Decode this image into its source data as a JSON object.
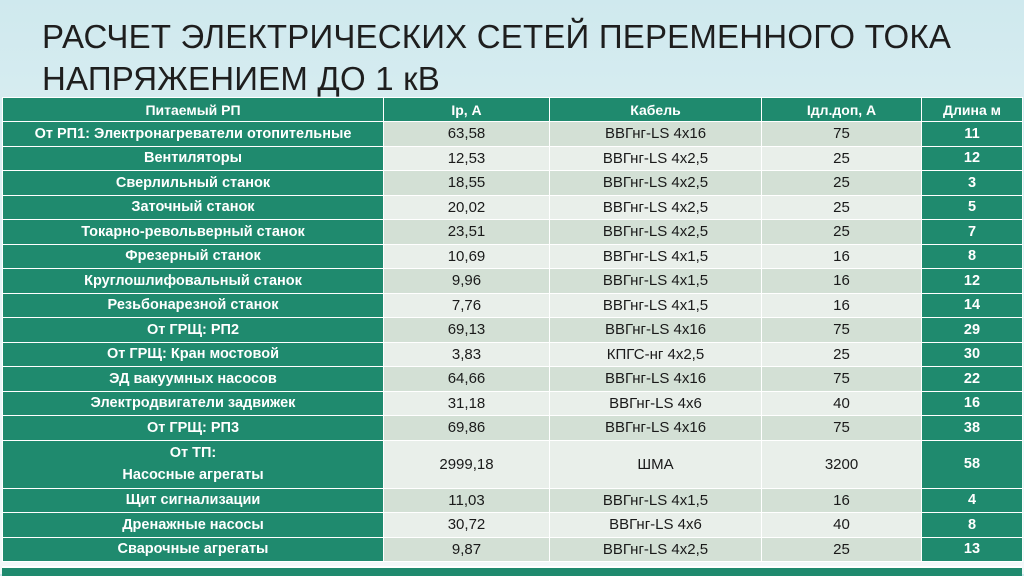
{
  "title": {
    "line1": "РАСЧЕТ ЭЛЕКТРИЧЕСКИХ СЕТЕЙ ПЕРЕМЕННОГО ТОКА",
    "line2": "НАПРЯЖЕНИЕМ ДО 1 кВ"
  },
  "table": {
    "headers": [
      "Питаемый РП",
      "Iр, А",
      "Кабель",
      "Iдл.доп, А",
      "Длина м"
    ],
    "rows": [
      {
        "name": [
          "От РП1: Электронагреватели отопительные"
        ],
        "ip": "63,58",
        "cable": "ВВГнг-LS 4х16",
        "idl": "75",
        "len": "11"
      },
      {
        "name": [
          "Вентиляторы"
        ],
        "ip": "12,53",
        "cable": "ВВГнг-LS 4х2,5",
        "idl": "25",
        "len": "12"
      },
      {
        "name": [
          "Сверлильный станок"
        ],
        "ip": "18,55",
        "cable": "ВВГнг-LS 4х2,5",
        "idl": "25",
        "len": "3"
      },
      {
        "name": [
          "Заточный станок"
        ],
        "ip": "20,02",
        "cable": "ВВГнг-LS 4х2,5",
        "idl": "25",
        "len": "5"
      },
      {
        "name": [
          "Токарно-револьверный станок"
        ],
        "ip": "23,51",
        "cable": "ВВГнг-LS 4х2,5",
        "idl": "25",
        "len": "7"
      },
      {
        "name": [
          "Фрезерный станок"
        ],
        "ip": "10,69",
        "cable": "ВВГнг-LS 4х1,5",
        "idl": "16",
        "len": "8"
      },
      {
        "name": [
          "Круглошлифовальный станок"
        ],
        "ip": "9,96",
        "cable": "ВВГнг-LS 4х1,5",
        "idl": "16",
        "len": "12"
      },
      {
        "name": [
          "Резьбонарезной станок"
        ],
        "ip": "7,76",
        "cable": "ВВГнг-LS 4х1,5",
        "idl": "16",
        "len": "14"
      },
      {
        "name": [
          "От ГРЩ: РП2"
        ],
        "ip": "69,13",
        "cable": "ВВГнг-LS 4х16",
        "idl": "75",
        "len": "29"
      },
      {
        "name": [
          "От ГРЩ: Кран мостовой"
        ],
        "ip": "3,83",
        "cable": "КПГС-нг 4х2,5",
        "idl": "25",
        "len": "30"
      },
      {
        "name": [
          "ЭД вакуумных насосов"
        ],
        "ip": "64,66",
        "cable": "ВВГнг-LS 4х16",
        "idl": "75",
        "len": "22"
      },
      {
        "name": [
          "Электродвигатели задвижек"
        ],
        "ip": "31,18",
        "cable": "ВВГнг-LS 4х6",
        "idl": "40",
        "len": "16"
      },
      {
        "name": [
          "От ГРЩ: РП3"
        ],
        "ip": "69,86",
        "cable": "ВВГнг-LS 4х16",
        "idl": "75",
        "len": "38"
      },
      {
        "name": [
          "От ТП:",
          "Насосные агрегаты"
        ],
        "ip": "2999,18",
        "cable": "ШМА",
        "idl": "3200",
        "len": "58"
      },
      {
        "name": [
          "Щит сигнализации"
        ],
        "ip": "11,03",
        "cable": "ВВГнг-LS 4х1,5",
        "idl": "16",
        "len": "4"
      },
      {
        "name": [
          "Дренажные насосы"
        ],
        "ip": "30,72",
        "cable": "ВВГнг-LS 4х6",
        "idl": "40",
        "len": "8"
      },
      {
        "name": [
          "Сварочные агрегаты"
        ],
        "ip": "9,87",
        "cable": "ВВГнг-LS 4х2,5",
        "idl": "25",
        "len": "13"
      }
    ]
  }
}
